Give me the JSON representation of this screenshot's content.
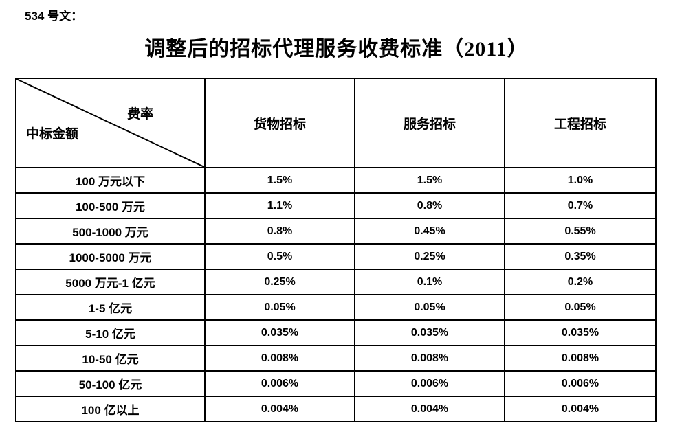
{
  "page": {
    "doc_label": "534 号文：",
    "title": "调整后的招标代理服务收费标准（2011）"
  },
  "table": {
    "corner": {
      "top_right": "费率",
      "bottom_left": "中标金额"
    },
    "columns": [
      "货物招标",
      "服务招标",
      "工程招标"
    ],
    "rows": [
      {
        "label": "100 万元以下",
        "values": [
          "1.5%",
          "1.5%",
          "1.0%"
        ]
      },
      {
        "label": "100-500 万元",
        "values": [
          "1.1%",
          "0.8%",
          "0.7%"
        ]
      },
      {
        "label": "500-1000 万元",
        "values": [
          "0.8%",
          "0.45%",
          "0.55%"
        ]
      },
      {
        "label": "1000-5000 万元",
        "values": [
          "0.5%",
          "0.25%",
          "0.35%"
        ]
      },
      {
        "label": "5000 万元-1 亿元",
        "values": [
          "0.25%",
          "0.1%",
          "0.2%"
        ]
      },
      {
        "label": "1-5 亿元",
        "values": [
          "0.05%",
          "0.05%",
          "0.05%"
        ]
      },
      {
        "label": "5-10 亿元",
        "values": [
          "0.035%",
          "0.035%",
          "0.035%"
        ]
      },
      {
        "label": "10-50 亿元",
        "values": [
          "0.008%",
          "0.008%",
          "0.008%"
        ]
      },
      {
        "label": "50-100 亿元",
        "values": [
          "0.006%",
          "0.006%",
          "0.006%"
        ]
      },
      {
        "label": "100 亿以上",
        "values": [
          "0.004%",
          "0.004%",
          "0.004%"
        ]
      }
    ]
  },
  "chart_data": {
    "type": "table",
    "title": "调整后的招标代理服务收费标准（2011）",
    "categories": [
      "100 万元以下",
      "100-500 万元",
      "500-1000 万元",
      "1000-5000 万元",
      "5000 万元-1 亿元",
      "1-5 亿元",
      "5-10 亿元",
      "10-50 亿元",
      "50-100 亿元",
      "100 亿以上"
    ],
    "series": [
      {
        "name": "货物招标",
        "values": [
          "1.5%",
          "1.1%",
          "0.8%",
          "0.5%",
          "0.25%",
          "0.05%",
          "0.035%",
          "0.008%",
          "0.006%",
          "0.004%"
        ]
      },
      {
        "name": "服务招标",
        "values": [
          "1.5%",
          "0.8%",
          "0.45%",
          "0.25%",
          "0.1%",
          "0.05%",
          "0.035%",
          "0.008%",
          "0.006%",
          "0.004%"
        ]
      },
      {
        "name": "工程招标",
        "values": [
          "1.0%",
          "0.7%",
          "0.55%",
          "0.35%",
          "0.2%",
          "0.05%",
          "0.035%",
          "0.008%",
          "0.006%",
          "0.004%"
        ]
      }
    ]
  }
}
